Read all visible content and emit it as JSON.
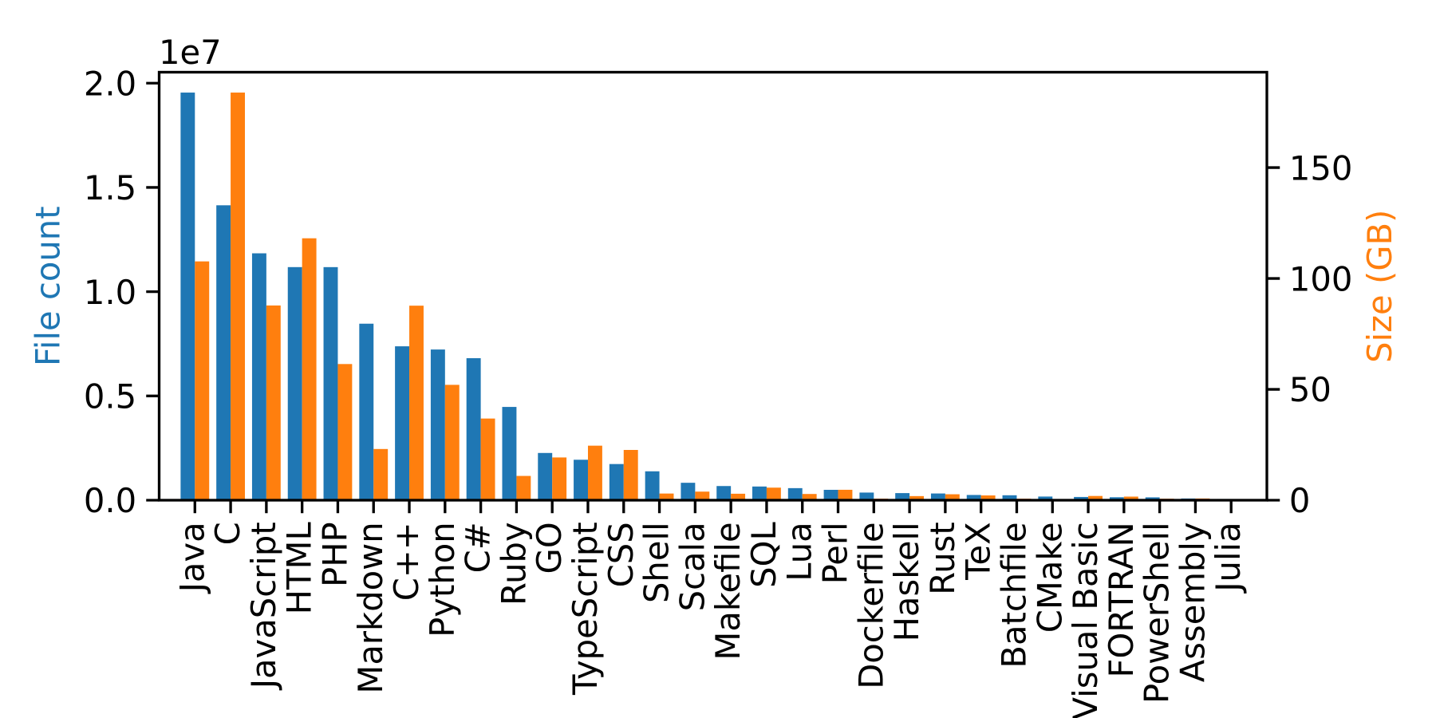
{
  "chart_data": {
    "type": "bar",
    "title": "",
    "xlabel": "",
    "grid": false,
    "legend": "none",
    "background": "#ffffff",
    "frame_color": "#000000",
    "tick_label_color": "#000000",
    "categories": [
      "Java",
      "C",
      "JavaScript",
      "HTML",
      "PHP",
      "Markdown",
      "C++",
      "Python",
      "C#",
      "Ruby",
      "GO",
      "TypeScript",
      "CSS",
      "Shell",
      "Scala",
      "Makefile",
      "SQL",
      "Lua",
      "Perl",
      "Dockerfile",
      "Haskell",
      "Rust",
      "TeX",
      "Batchfile",
      "CMake",
      "Visual Basic",
      "FORTRAN",
      "PowerShell",
      "Assembly",
      "Julia"
    ],
    "series": [
      {
        "name": "File count",
        "axis": "left",
        "color": "#1f77b4",
        "values": [
          19548190,
          14143113,
          11839883,
          11178557,
          11177610,
          8464626,
          7380520,
          7226626,
          6811652,
          4473331,
          2265436,
          1940406,
          1734406,
          1385648,
          835755,
          679430,
          656671,
          578554,
          497949,
          366505,
          340623,
          322431,
          251015,
          236945,
          175282,
          155652,
          142038,
          136846,
          82905,
          58317
        ]
      },
      {
        "name": "Size (GB)",
        "axis": "right",
        "color": "#ff7f0e",
        "values": [
          107.7,
          183.83,
          87.82,
          118.12,
          61.41,
          23.09,
          87.73,
          52.03,
          36.83,
          10.95,
          19.28,
          24.59,
          22.67,
          3.01,
          3.87,
          2.92,
          5.67,
          2.81,
          4.7,
          0.71,
          1.85,
          2.68,
          2.15,
          0.7,
          0.54,
          1.91,
          1.62,
          0.69,
          0.78,
          0.29
        ]
      }
    ],
    "left_axis": {
      "label": "File count",
      "label_color": "#1f77b4",
      "offset_text": "1e7",
      "tick_labels": [
        "0.0",
        "0.5",
        "1.0",
        "1.5",
        "2.0"
      ],
      "tick_values": [
        0,
        5000000,
        10000000,
        15000000,
        20000000
      ],
      "ylim": [
        0,
        20525599.5
      ]
    },
    "right_axis": {
      "label": "Size (GB)",
      "label_color": "#ff7f0e",
      "tick_labels": [
        "0",
        "50",
        "100",
        "150"
      ],
      "tick_values": [
        0,
        50,
        100,
        150
      ],
      "ylim": [
        0,
        193.0215
      ]
    },
    "xlim": [
      -1,
      30
    ],
    "bar_width": 0.4
  }
}
